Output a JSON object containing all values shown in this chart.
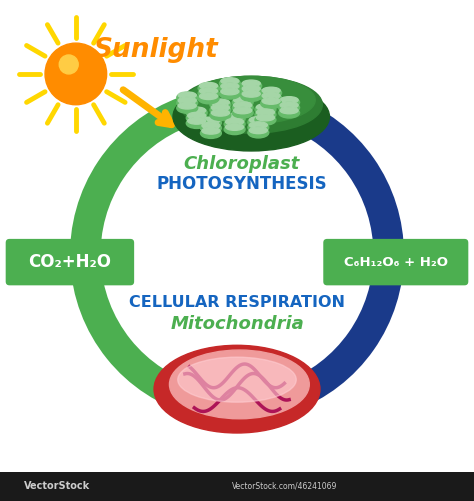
{
  "bg_color": "#ffffff",
  "sun_color": "#FF8C00",
  "sun_ray_color": "#FFD700",
  "sunlight_text": "Sunlight",
  "sunlight_color": "#FF8C00",
  "arrow_down_color": "#FFB300",
  "arrow_left_color": "#4CAF50",
  "arrow_right_color": "#1A3A8A",
  "chloroplast_label": "Chloroplast",
  "photosynthesis_label": "PHOTOSYNTHESIS",
  "chloroplast_color_dark": "#2E7D32",
  "chloroplast_color_light": "#66BB6A",
  "co2_label": "CO₂+H₂O",
  "glucose_label": "C₆H₁₂O₆ + H₂O",
  "respiration_label": "CELLULAR RESPIRATION",
  "mitochondria_label": "Mitochondria",
  "label_bg_color": "#4CAF50",
  "label_text_color": "#ffffff",
  "resp_text_color": "#1565C0",
  "mito_text_color": "#4CAF50",
  "chloro_text_color": "#4CAF50",
  "photo_text_color": "#1565C0",
  "watermark_color": "#555555",
  "figwidth": 4.74,
  "figheight": 5.01,
  "dpi": 100
}
